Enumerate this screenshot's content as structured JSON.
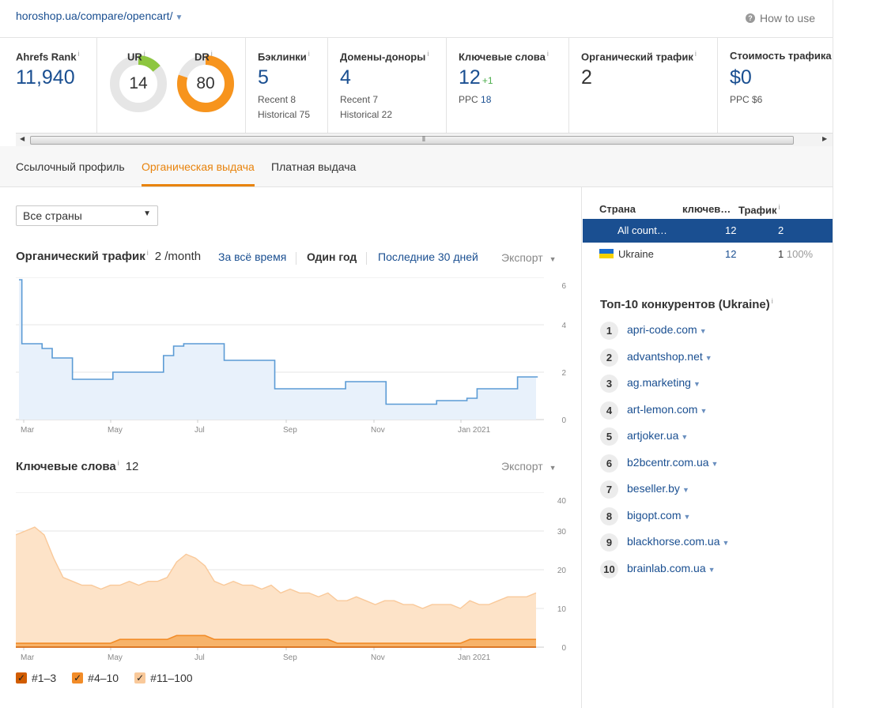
{
  "header": {
    "url": "horoshop.ua/compare/opencart/",
    "how_to_use": "How to use"
  },
  "metrics": {
    "ahrefs_rank": {
      "label": "Ahrefs Rank",
      "value": "11,940"
    },
    "ur": {
      "label": "UR",
      "value": "14",
      "level": 14
    },
    "dr": {
      "label": "DR",
      "value": "80",
      "level": 80
    },
    "backlinks": {
      "label": "Бэклинки",
      "value": "5",
      "recent": "Recent 8",
      "historical": "Historical 75"
    },
    "ref_domains": {
      "label": "Домены-доноры",
      "value": "4",
      "recent": "Recent 7",
      "historical": "Historical 22"
    },
    "keywords": {
      "label": "Ключевые слова",
      "value": "12",
      "delta": "+1",
      "ppc_label": "PPC",
      "ppc_value": "18"
    },
    "organic_traffic": {
      "label": "Органический трафик",
      "value": "2"
    },
    "traffic_cost": {
      "label": "Стоимость трафика",
      "value": "$0",
      "ppc": "PPC $6"
    }
  },
  "tabs": [
    "Ссылочный профиль",
    "Органическая выдача",
    "Платная выдача"
  ],
  "active_tab": 1,
  "country_select": "Все страны",
  "traffic_section": {
    "title": "Органический трафик",
    "value": "2 /month",
    "ranges": [
      "За всё время",
      "Один год",
      "Последние 30 дней"
    ],
    "export": "Экспорт"
  },
  "keywords_section": {
    "title": "Ключевые слова",
    "value": "12",
    "export": "Экспорт"
  },
  "x_ticks": [
    "Mar",
    "May",
    "Jul",
    "Sep",
    "Nov",
    "Jan 2021"
  ],
  "chart_data": [
    {
      "type": "line",
      "title": "Органический трафик",
      "x_ticks": [
        "Mar",
        "May",
        "Jul",
        "Sep",
        "Nov",
        "Jan 2021"
      ],
      "yticks": [
        0,
        2,
        4,
        6
      ],
      "ylim": [
        0,
        6
      ],
      "grid": true,
      "color": "#5b9bd5",
      "x": [
        "Mar 1",
        "Mar 3",
        "Mar 10",
        "Mar 17",
        "Mar 24",
        "Apr 7",
        "Apr 14",
        "May 5",
        "May 26",
        "Jun 9",
        "Jun 16",
        "Jun 23",
        "Jun 30",
        "Jul 21",
        "Aug 4",
        "Aug 18",
        "Aug 25",
        "Sep 15",
        "Oct 6",
        "Oct 13",
        "Oct 27",
        "Nov 3",
        "Nov 10",
        "Nov 17",
        "Dec 1",
        "Dec 15",
        "Dec 29",
        "Jan 5",
        "Jan 12",
        "Jan 26",
        "Feb 2",
        "Feb 9",
        "Feb 23"
      ],
      "series": [
        {
          "values": [
            5.9,
            3.2,
            3.2,
            3.0,
            2.6,
            1.7,
            1.7,
            2.0,
            2.0,
            2.7,
            3.1,
            3.2,
            3.2,
            2.5,
            2.5,
            2.5,
            1.3,
            1.3,
            1.3,
            1.6,
            1.6,
            1.6,
            0.65,
            0.65,
            0.65,
            0.8,
            0.8,
            0.9,
            1.3,
            1.3,
            1.3,
            1.8,
            1.8
          ]
        }
      ]
    },
    {
      "type": "area",
      "title": "Ключевые слова",
      "x_ticks": [
        "Mar",
        "May",
        "Jul",
        "Sep",
        "Nov",
        "Jan 2021"
      ],
      "yticks": [
        0,
        10,
        20,
        30,
        40
      ],
      "ylim": [
        0,
        40
      ],
      "grid": true,
      "stacked": true,
      "legend": "bottom-left",
      "series": [
        {
          "name": "#1–3",
          "color": "#d15c00",
          "values": [
            0,
            0,
            0,
            0,
            0,
            0,
            0,
            0,
            0,
            0,
            0,
            0,
            0,
            0,
            0,
            0,
            0,
            0,
            0,
            0,
            0,
            0,
            0,
            0,
            0,
            0,
            0,
            0,
            0,
            0,
            0,
            0,
            0,
            0,
            0,
            0,
            0,
            0,
            0,
            0,
            0,
            0,
            0,
            0,
            0,
            0,
            0,
            0,
            0,
            0,
            0,
            0,
            0,
            0,
            0,
            0
          ]
        },
        {
          "name": "#4–10",
          "color": "#f28c28",
          "values": [
            1,
            1,
            1,
            1,
            1,
            1,
            1,
            1,
            1,
            1,
            1,
            2,
            2,
            2,
            2,
            2,
            2,
            3,
            3,
            3,
            3,
            2,
            2,
            2,
            2,
            2,
            2,
            2,
            2,
            2,
            2,
            2,
            2,
            2,
            1,
            1,
            1,
            1,
            1,
            1,
            1,
            1,
            1,
            1,
            1,
            1,
            1,
            1,
            2,
            2,
            2,
            2,
            2,
            2,
            2,
            2
          ]
        },
        {
          "name": "#11–100",
          "color": "#f9c99a",
          "values": [
            28,
            29,
            30,
            28,
            22,
            17,
            16,
            15,
            15,
            14,
            15,
            14,
            15,
            14,
            15,
            15,
            16,
            19,
            21,
            20,
            18,
            15,
            14,
            15,
            14,
            14,
            13,
            14,
            12,
            13,
            12,
            12,
            11,
            12,
            11,
            11,
            12,
            11,
            10,
            11,
            11,
            10,
            10,
            9,
            10,
            10,
            10,
            9,
            10,
            9,
            9,
            10,
            11,
            11,
            11,
            12
          ]
        }
      ],
      "x_count": 56
    }
  ],
  "country_table": {
    "headers": [
      "Страна",
      "ключев…",
      "Трафик"
    ],
    "rows": [
      {
        "country": "All count…",
        "keywords": "12",
        "traffic": "2",
        "share": "",
        "selected": true
      },
      {
        "country": "Ukraine",
        "keywords": "12",
        "traffic": "1",
        "share": "100%",
        "selected": false,
        "flag": "ukraine-flag"
      }
    ]
  },
  "competitors": {
    "title": "Топ-10 конкурентов (Ukraine)",
    "items": [
      "apri-code.com",
      "advantshop.net",
      "ag.marketing",
      "art-lemon.com",
      "artjoker.ua",
      "b2bcentr.com.ua",
      "beseller.by",
      "bigopt.com",
      "blackhorse.com.ua",
      "brainlab.com.ua"
    ]
  },
  "colors": {
    "brand_blue": "#1a4f91",
    "accent_orange": "#e8830c",
    "ur_green": "#8dc63f",
    "dr_orange": "#f7941d",
    "traffic_line": "#5b9bd5"
  }
}
